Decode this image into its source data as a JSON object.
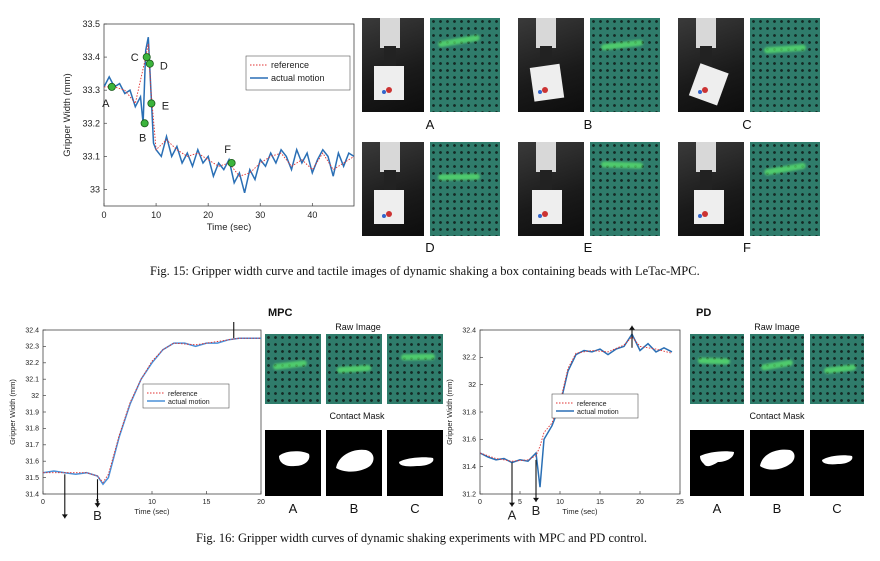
{
  "fig15": {
    "caption": "Fig. 15: Gripper width curve and tactile images of dynamic shaking a box containing beads with LeTac-MPC.",
    "image_labels": [
      "A",
      "B",
      "C",
      "D",
      "E",
      "F"
    ]
  },
  "fig16": {
    "caption": "Fig. 16: Gripper width curves of dynamic shaking experiments with MPC and PD control.",
    "mpc_title": "MPC",
    "pd_title": "PD",
    "raw_image_label": "Raw Image",
    "contact_mask_label": "Contact Mask",
    "image_labels": [
      "A",
      "B",
      "C"
    ]
  },
  "chart_data": [
    {
      "type": "line",
      "xlabel": "Time (sec)",
      "ylabel": "Gripper Width (mm)",
      "xlim": [
        0,
        48
      ],
      "ylim": [
        32.95,
        33.5
      ],
      "xticks": [
        0,
        10,
        20,
        30,
        40
      ],
      "yticks": [
        33,
        33.1,
        33.2,
        33.3,
        33.4,
        33.5
      ],
      "legend": [
        "reference",
        "actual motion"
      ],
      "legend_position": "top-right",
      "series": [
        {
          "name": "actual motion",
          "color": "#2a6fb5",
          "x": [
            0,
            1,
            2,
            3,
            4,
            5,
            6,
            7,
            7.5,
            8,
            8.5,
            9,
            9.5,
            10,
            11,
            12,
            13,
            14,
            15,
            16,
            17,
            18,
            19,
            20,
            21,
            22,
            23,
            24,
            25,
            26,
            27,
            28,
            29,
            30,
            31,
            32,
            33,
            34,
            35,
            36,
            37,
            38,
            39,
            40,
            41,
            42,
            43,
            44,
            45,
            46,
            47,
            48
          ],
          "y": [
            33.31,
            33.34,
            33.31,
            33.32,
            33.29,
            33.3,
            33.25,
            33.28,
            33.2,
            33.42,
            33.46,
            33.3,
            33.14,
            33.12,
            33.1,
            33.16,
            33.1,
            33.13,
            33.08,
            33.11,
            33.07,
            33.12,
            33.08,
            33.1,
            33.04,
            33.08,
            33.06,
            33.09,
            33.02,
            33.05,
            32.99,
            33.06,
            33.03,
            33.09,
            33.07,
            33.11,
            33.08,
            33.12,
            33.1,
            33.06,
            33.12,
            33.08,
            33.11,
            33.05,
            33.09,
            33.12,
            33.1,
            33.04,
            33.11,
            33.07,
            33.11,
            33.1
          ]
        },
        {
          "name": "reference",
          "color": "#e03030",
          "x": [
            0,
            2,
            4,
            6,
            8,
            8.5,
            9,
            10,
            12,
            14,
            16,
            18,
            20,
            22,
            24,
            26,
            28,
            30,
            32,
            34,
            36,
            38,
            40,
            42,
            44,
            46,
            48
          ],
          "y": [
            33.31,
            33.31,
            33.3,
            33.26,
            33.4,
            33.44,
            33.3,
            33.12,
            33.15,
            33.12,
            33.1,
            33.11,
            33.09,
            33.07,
            33.08,
            33.04,
            33.05,
            33.08,
            33.1,
            33.11,
            33.07,
            33.09,
            33.06,
            33.11,
            33.06,
            33.08,
            33.1
          ]
        }
      ],
      "annotations": [
        {
          "label": "A",
          "x": 1.5,
          "y": 33.31
        },
        {
          "label": "B",
          "x": 7.8,
          "y": 33.2
        },
        {
          "label": "C",
          "x": 8.2,
          "y": 33.4
        },
        {
          "label": "D",
          "x": 8.8,
          "y": 33.38
        },
        {
          "label": "E",
          "x": 9.1,
          "y": 33.26
        },
        {
          "label": "F",
          "x": 24.5,
          "y": 33.08
        }
      ]
    },
    {
      "type": "line",
      "xlabel": "Time (sec)",
      "ylabel": "Gripper Width (mm)",
      "xlim": [
        0,
        20
      ],
      "ylim": [
        31.4,
        32.4
      ],
      "xticks": [
        0,
        5,
        10,
        15,
        20
      ],
      "yticks": [
        31.4,
        31.5,
        31.6,
        31.7,
        31.8,
        31.9,
        32,
        32.1,
        32.2,
        32.3,
        32.4
      ],
      "legend": [
        "reference",
        "actual motion"
      ],
      "legend_position": "center-right",
      "series": [
        {
          "name": "actual motion",
          "color": "#4a90d9",
          "x": [
            0,
            1,
            2,
            3,
            4,
            5,
            5.5,
            6,
            7,
            8,
            9,
            10,
            11,
            12,
            13,
            14,
            15,
            16,
            17,
            18,
            19,
            20
          ],
          "y": [
            31.53,
            31.54,
            31.53,
            31.52,
            31.53,
            31.51,
            31.46,
            31.5,
            31.75,
            31.95,
            32.1,
            32.2,
            32.28,
            32.32,
            32.32,
            32.3,
            32.32,
            32.32,
            32.34,
            32.35,
            32.35,
            32.35
          ]
        },
        {
          "name": "reference",
          "color": "#e03030",
          "x": [
            0,
            2,
            4,
            5,
            5.5,
            6,
            7,
            8,
            9,
            10,
            11,
            12,
            14,
            16,
            18,
            20
          ],
          "y": [
            31.53,
            31.53,
            31.53,
            31.51,
            31.47,
            31.52,
            31.76,
            31.96,
            32.1,
            32.21,
            32.28,
            32.32,
            32.31,
            32.33,
            32.35,
            32.35
          ]
        }
      ],
      "annotations": [
        {
          "label": "A",
          "x": 2,
          "y": 31.52
        },
        {
          "label": "B",
          "x": 5,
          "y": 31.49
        },
        {
          "label": "C",
          "x": 17.5,
          "y": 32.35
        }
      ]
    },
    {
      "type": "line",
      "xlabel": "Time (sec)",
      "ylabel": "Gripper Width (mm)",
      "xlim": [
        0,
        25
      ],
      "ylim": [
        31.2,
        32.4
      ],
      "xticks": [
        0,
        5,
        10,
        15,
        20,
        25
      ],
      "yticks": [
        31.2,
        31.4,
        31.6,
        31.8,
        32,
        32.2,
        32.4
      ],
      "legend": [
        "reference",
        "actual motion"
      ],
      "legend_position": "center-right",
      "series": [
        {
          "name": "actual motion",
          "color": "#2a6fb5",
          "x": [
            0,
            1,
            2,
            3,
            4,
            5,
            6,
            7,
            7.5,
            8,
            9,
            10,
            11,
            12,
            13,
            14,
            15,
            16,
            17,
            18,
            19,
            20,
            21,
            22,
            23,
            24
          ],
          "y": [
            31.5,
            31.47,
            31.45,
            31.46,
            31.43,
            31.45,
            31.44,
            31.5,
            31.25,
            31.6,
            31.7,
            31.85,
            32.1,
            32.22,
            32.25,
            32.24,
            32.26,
            32.22,
            32.26,
            32.28,
            32.37,
            32.25,
            32.3,
            32.24,
            32.27,
            32.24
          ]
        },
        {
          "name": "reference",
          "color": "#e03030",
          "x": [
            0,
            2,
            4,
            6,
            7,
            7.5,
            8,
            9,
            10,
            11,
            12,
            14,
            16,
            18,
            19,
            20,
            22,
            24
          ],
          "y": [
            31.5,
            31.46,
            31.44,
            31.45,
            31.48,
            31.55,
            31.65,
            31.72,
            31.87,
            32.12,
            32.23,
            32.25,
            32.24,
            32.29,
            32.35,
            32.28,
            32.26,
            32.23
          ]
        }
      ],
      "annotations": [
        {
          "label": "A",
          "x": 4,
          "y": 31.43
        },
        {
          "label": "B",
          "x": 7,
          "y": 31.45
        },
        {
          "label": "C",
          "x": 19,
          "y": 32.27
        }
      ]
    }
  ]
}
